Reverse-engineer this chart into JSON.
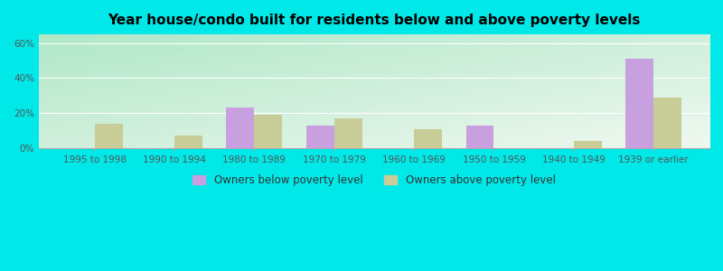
{
  "title": "Year house/condo built for residents below and above poverty levels",
  "categories": [
    "1995 to 1998",
    "1990 to 1994",
    "1980 to 1989",
    "1970 to 1979",
    "1960 to 1969",
    "1950 to 1959",
    "1940 to 1949",
    "1939 or earlier"
  ],
  "below_poverty": [
    0,
    0,
    23,
    13,
    0,
    13,
    0,
    51
  ],
  "above_poverty": [
    14,
    7,
    19,
    17,
    11,
    0,
    4,
    29
  ],
  "below_color": "#c8a0e0",
  "above_color": "#c8cc96",
  "bar_width": 0.35,
  "ylim": [
    0,
    65
  ],
  "yticks": [
    0,
    20,
    40,
    60
  ],
  "ytick_labels": [
    "0%",
    "20%",
    "40%",
    "60%"
  ],
  "outer_bg": "#00e8e8",
  "legend_below_label": "Owners below poverty level",
  "legend_above_label": "Owners above poverty level",
  "title_fontsize": 11,
  "tick_fontsize": 7.5,
  "legend_fontsize": 8.5,
  "grad_topleft": "#b0e8c8",
  "grad_bottomright": "#f0f8f0"
}
